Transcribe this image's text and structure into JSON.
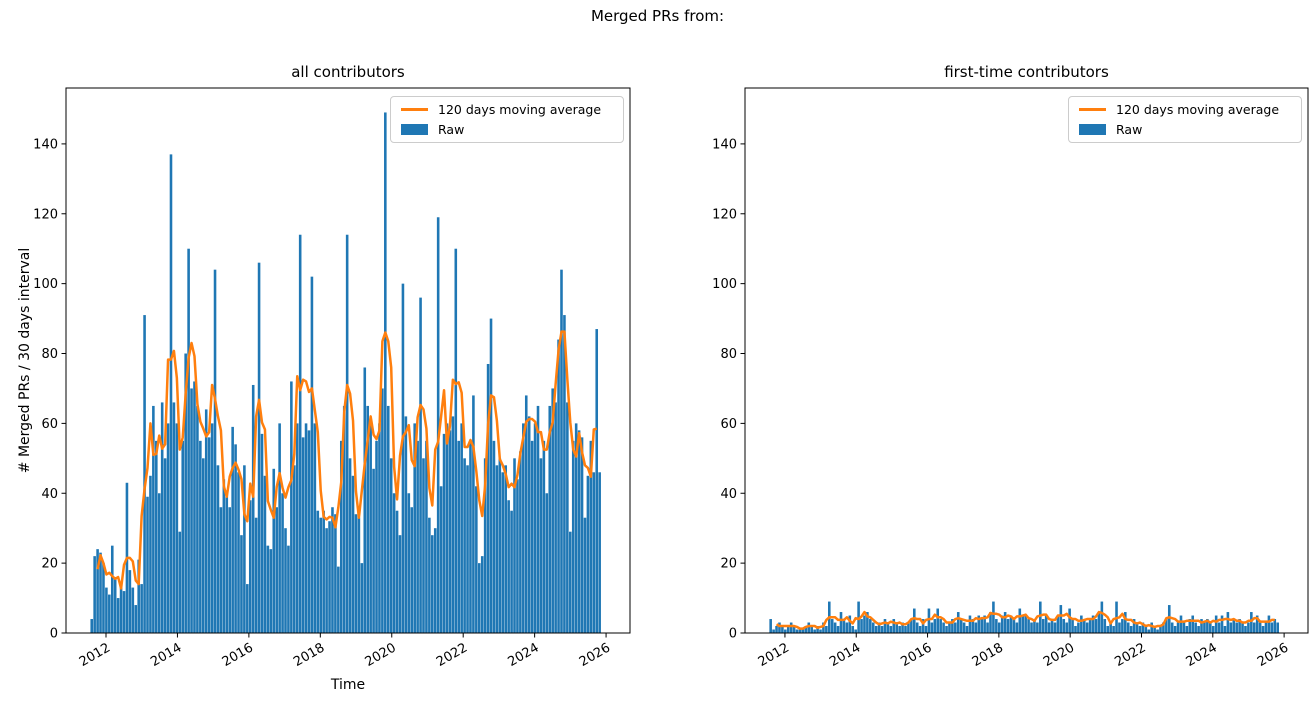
{
  "suptitle": "Merged PRs from:",
  "colors": {
    "raw": "#1f77b4",
    "moving_average": "#ff7f0e",
    "axis": "#000000",
    "legend_border": "#cccccc"
  },
  "chart_data": [
    {
      "type": "bar",
      "title": "all contributors",
      "xlabel": "Time",
      "ylabel": "# Merged PRs / 30 days interval",
      "x_start": 2011.6,
      "x_step": 0.0822,
      "xlim": [
        2010.88,
        2026.67
      ],
      "ylim": [
        0,
        156
      ],
      "x_ticks": [
        2012,
        2014,
        2016,
        2018,
        2020,
        2022,
        2024,
        2026
      ],
      "y_ticks": [
        0,
        20,
        40,
        60,
        80,
        100,
        120,
        140
      ],
      "grid": false,
      "legend_position": "upper right",
      "series": [
        {
          "name": "Raw",
          "type": "bar",
          "color": "#1f77b4",
          "values": [
            4,
            22,
            24,
            23,
            20,
            13,
            11,
            25,
            16,
            10,
            13,
            12,
            43,
            18,
            13,
            8,
            21,
            14,
            91,
            39,
            45,
            65,
            55,
            40,
            66,
            50,
            60,
            137,
            66,
            60,
            29,
            55,
            80,
            110,
            70,
            72,
            65,
            55,
            50,
            64,
            56,
            60,
            104,
            48,
            36,
            44,
            40,
            36,
            59,
            54,
            46,
            28,
            48,
            14,
            38,
            71,
            33,
            106,
            57,
            45,
            25,
            24,
            47,
            36,
            60,
            40,
            30,
            25,
            72,
            48,
            60,
            114,
            56,
            60,
            58,
            102,
            60,
            35,
            33,
            35,
            30,
            32,
            36,
            34,
            19,
            55,
            65,
            114,
            50,
            45,
            34,
            33,
            20,
            76,
            65,
            60,
            47,
            55,
            60,
            70,
            149,
            65,
            50,
            40,
            35,
            28,
            100,
            62,
            40,
            36,
            60,
            55,
            96,
            50,
            55,
            33,
            28,
            30,
            119,
            42,
            57,
            60,
            58,
            62,
            110,
            55,
            60,
            50,
            48,
            55,
            68,
            42,
            20,
            22,
            50,
            77,
            90,
            55,
            48,
            50,
            46,
            48,
            38,
            35,
            50,
            44,
            52,
            60,
            68,
            62,
            55,
            60,
            65,
            50,
            55,
            40,
            65,
            70,
            66,
            84,
            104,
            91,
            66,
            29,
            55,
            60,
            58,
            56,
            33,
            45,
            55,
            46,
            87,
            46
          ]
        },
        {
          "name": "120 days moving average",
          "type": "line",
          "color": "#ff7f0e",
          "derived": "centered moving average of Raw, window 4 bins (120 days)"
        }
      ]
    },
    {
      "type": "bar",
      "title": "first-time contributors",
      "xlabel": "",
      "ylabel": "",
      "x_start": 2011.6,
      "x_step": 0.0822,
      "xlim": [
        2010.88,
        2026.67
      ],
      "ylim": [
        0,
        156
      ],
      "x_ticks": [
        2012,
        2014,
        2016,
        2018,
        2020,
        2022,
        2024,
        2026
      ],
      "y_ticks": [
        0,
        20,
        40,
        60,
        80,
        100,
        120,
        140
      ],
      "grid": false,
      "legend_position": "upper right",
      "series": [
        {
          "name": "Raw",
          "type": "bar",
          "color": "#1f77b4",
          "values": [
            4,
            1,
            2,
            3,
            2,
            1,
            2,
            3,
            2,
            1,
            1,
            1,
            2,
            3,
            2,
            1,
            2,
            1,
            3,
            2,
            9,
            4,
            3,
            2,
            6,
            4,
            3,
            5,
            2,
            1,
            9,
            4,
            5,
            6,
            4,
            3,
            2,
            3,
            2,
            4,
            3,
            2,
            4,
            3,
            2,
            3,
            2,
            3,
            4,
            7,
            3,
            2,
            4,
            2,
            7,
            3,
            4,
            7,
            4,
            3,
            2,
            3,
            4,
            3,
            6,
            4,
            3,
            2,
            5,
            4,
            3,
            5,
            4,
            5,
            3,
            6,
            9,
            4,
            3,
            5,
            6,
            4,
            5,
            4,
            3,
            7,
            5,
            5,
            4,
            3,
            4,
            3,
            9,
            4,
            5,
            3,
            4,
            3,
            5,
            8,
            4,
            3,
            7,
            4,
            2,
            3,
            5,
            4,
            3,
            4,
            5,
            4,
            6,
            9,
            4,
            2,
            3,
            2,
            9,
            3,
            4,
            6,
            3,
            2,
            4,
            3,
            2,
            3,
            2,
            1,
            3,
            2,
            1,
            2,
            3,
            4,
            8,
            3,
            2,
            3,
            5,
            3,
            2,
            4,
            5,
            3,
            2,
            4,
            3,
            4,
            3,
            2,
            5,
            3,
            5,
            2,
            6,
            3,
            4,
            3,
            4,
            3,
            2,
            3,
            6,
            3,
            5,
            3,
            2,
            3,
            5,
            3,
            4,
            3
          ]
        },
        {
          "name": "120 days moving average",
          "type": "line",
          "color": "#ff7f0e",
          "derived": "centered moving average of Raw, window 4 bins (120 days)"
        }
      ]
    }
  ]
}
